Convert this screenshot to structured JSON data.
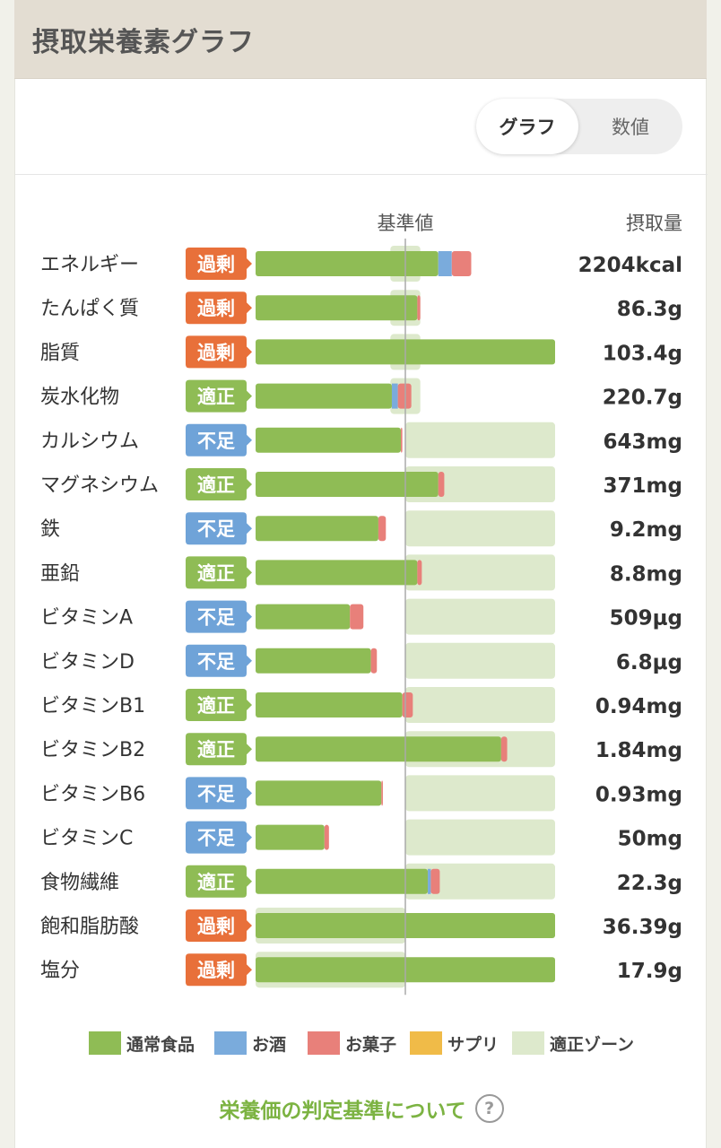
{
  "header": {
    "title": "摂取栄養素グラフ"
  },
  "toggle": {
    "graph_label": "グラフ",
    "numbers_label": "数値",
    "selected": "グラフ"
  },
  "colors": {
    "normal_food": "#8fbc55",
    "alcohol": "#7aabdc",
    "snacks": "#e8807a",
    "supplement": "#f0bb48",
    "optimal_zone": "#dde9cc",
    "status_excess": "#e8703a",
    "status_optimal": "#8fbc55",
    "status_deficient": "#6fa3d8"
  },
  "chart_data": {
    "type": "bar",
    "orientation": "horizontal",
    "stacked": true,
    "reference_label": "基準値",
    "amount_header": "摂取量",
    "scale_note": "values are percent of reference (基準値 = 100)",
    "xlim": [
      0,
      200
    ],
    "reference_value": 100,
    "series": [
      {
        "name": "通常食品",
        "key": "normal_food"
      },
      {
        "name": "お酒",
        "key": "alcohol"
      },
      {
        "name": "お菓子",
        "key": "snacks"
      },
      {
        "name": "サプリ",
        "key": "supplement"
      },
      {
        "name": "適正ゾーン",
        "key": "optimal_zone"
      }
    ],
    "rows": [
      {
        "name": "エネルギー",
        "status": "過剰",
        "status_key": "excess",
        "amount": "2204kcal",
        "zone": [
          90,
          110
        ],
        "normal_food": 122,
        "alcohol": 9,
        "snacks": 13
      },
      {
        "name": "たんぱく質",
        "status": "過剰",
        "status_key": "excess",
        "amount": "86.3g",
        "zone": [
          90,
          110
        ],
        "normal_food": 108,
        "alcohol": 0,
        "snacks": 2
      },
      {
        "name": "脂質",
        "status": "過剰",
        "status_key": "excess",
        "amount": "103.4g",
        "zone": [
          90,
          110
        ],
        "normal_food": 200,
        "alcohol": 0,
        "snacks": 0
      },
      {
        "name": "炭水化物",
        "status": "適正",
        "status_key": "optimal",
        "amount": "220.7g",
        "zone": [
          90,
          110
        ],
        "normal_food": 91,
        "alcohol": 4,
        "snacks": 9
      },
      {
        "name": "カルシウム",
        "status": "不足",
        "status_key": "deficient",
        "amount": "643mg",
        "zone": [
          100,
          200
        ],
        "normal_food": 97,
        "alcohol": 0,
        "snacks": 1
      },
      {
        "name": "マグネシウム",
        "status": "適正",
        "status_key": "optimal",
        "amount": "371mg",
        "zone": [
          100,
          200
        ],
        "normal_food": 122,
        "alcohol": 0,
        "snacks": 4
      },
      {
        "name": "鉄",
        "status": "不足",
        "status_key": "deficient",
        "amount": "9.2mg",
        "zone": [
          100,
          200
        ],
        "normal_food": 82,
        "alcohol": 0,
        "snacks": 5
      },
      {
        "name": "亜鉛",
        "status": "適正",
        "status_key": "optimal",
        "amount": "8.8mg",
        "zone": [
          100,
          200
        ],
        "normal_food": 108,
        "alcohol": 0,
        "snacks": 3
      },
      {
        "name": "ビタミンA",
        "status": "不足",
        "status_key": "deficient",
        "amount": "509μg",
        "zone": [
          100,
          200
        ],
        "normal_food": 63,
        "alcohol": 0,
        "snacks": 9
      },
      {
        "name": "ビタミンD",
        "status": "不足",
        "status_key": "deficient",
        "amount": "6.8μg",
        "zone": [
          100,
          200
        ],
        "normal_food": 77,
        "alcohol": 0,
        "snacks": 4
      },
      {
        "name": "ビタミンB1",
        "status": "適正",
        "status_key": "optimal",
        "amount": "0.94mg",
        "zone": [
          100,
          200
        ],
        "normal_food": 98,
        "alcohol": 0,
        "snacks": 7
      },
      {
        "name": "ビタミンB2",
        "status": "適正",
        "status_key": "optimal",
        "amount": "1.84mg",
        "zone": [
          100,
          200
        ],
        "normal_food": 164,
        "alcohol": 0,
        "snacks": 4
      },
      {
        "name": "ビタミンB6",
        "status": "不足",
        "status_key": "deficient",
        "amount": "0.93mg",
        "zone": [
          100,
          200
        ],
        "normal_food": 84,
        "alcohol": 0,
        "snacks": 1
      },
      {
        "name": "ビタミンC",
        "status": "不足",
        "status_key": "deficient",
        "amount": "50mg",
        "zone": [
          100,
          200
        ],
        "normal_food": 46,
        "alcohol": 0,
        "snacks": 3
      },
      {
        "name": "食物繊維",
        "status": "適正",
        "status_key": "optimal",
        "amount": "22.3g",
        "zone": [
          100,
          200
        ],
        "normal_food": 115,
        "alcohol": 2,
        "snacks": 6
      },
      {
        "name": "飽和脂肪酸",
        "status": "過剰",
        "status_key": "excess",
        "amount": "36.39g",
        "zone": [
          0,
          100
        ],
        "normal_food": 200,
        "alcohol": 0,
        "snacks": 0
      },
      {
        "name": "塩分",
        "status": "過剰",
        "status_key": "excess",
        "amount": "17.9g",
        "zone": [
          0,
          100
        ],
        "normal_food": 200,
        "alcohol": 0,
        "snacks": 0
      }
    ]
  },
  "legend": [
    {
      "label": "通常食品",
      "key": "normal_food"
    },
    {
      "label": "お酒",
      "key": "alcohol"
    },
    {
      "label": "お菓子",
      "key": "snacks"
    },
    {
      "label": "サプリ",
      "key": "supplement"
    },
    {
      "label": "適正ゾーン",
      "key": "optimal_zone"
    }
  ],
  "footer": {
    "criteria_link": "栄養価の判定基準について",
    "help_icon_text": "?"
  }
}
